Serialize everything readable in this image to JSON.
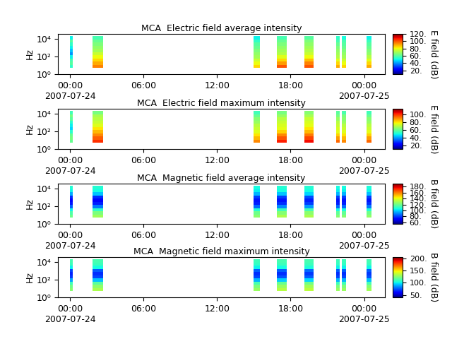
{
  "chart_data": [
    {
      "type": "heatmap",
      "title": "MCA  Electric field average intensity",
      "y_label": "Hz",
      "colorbar_label": "E field (dB)",
      "log": "y",
      "xlim": [
        -1.0,
        25.7
      ],
      "xticks": [
        {
          "value": 0,
          "label": "00:00\n2007-07-24"
        },
        {
          "value": 6,
          "label": "06:00"
        },
        {
          "value": 12,
          "label": "12:00"
        },
        {
          "value": 18,
          "label": "18:00"
        },
        {
          "value": 24,
          "label": "00:00\n2007-07-25"
        }
      ],
      "ylim": [
        1,
        36000
      ],
      "yticks": [
        {
          "value": 1,
          "label": "10⁰"
        },
        {
          "value": 100,
          "label": "10²"
        },
        {
          "value": 10000,
          "label": "10⁴"
        }
      ],
      "colorbar_lim": [
        10,
        120
      ],
      "colorbar_ticks": [
        {
          "value": 20,
          "label": "20."
        },
        {
          "value": 40,
          "label": "40."
        },
        {
          "value": 60,
          "label": "60."
        },
        {
          "value": 80,
          "label": "80."
        },
        {
          "value": 100,
          "label": "100."
        },
        {
          "value": 120,
          "label": "120."
        }
      ],
      "frequency_bins": [
        5,
        11.5,
        26,
        60,
        138,
        316,
        724,
        1660,
        3800,
        8700,
        20000
      ],
      "segments": [
        {
          "start": 0.0,
          "end": 0.23,
          "cells": [
            55,
            60,
            58,
            50,
            40,
            45,
            50,
            55,
            60,
            50
          ]
        },
        {
          "start": 1.85,
          "end": 2.7,
          "cells": [
            95,
            90,
            85,
            80,
            75,
            70,
            68,
            65,
            62,
            58
          ]
        },
        {
          "start": 15.0,
          "end": 15.5,
          "cells": [
            85,
            80,
            75,
            70,
            68,
            65,
            62,
            60,
            55,
            50
          ]
        },
        {
          "start": 16.9,
          "end": 17.7,
          "cells": [
            100,
            92,
            85,
            78,
            72,
            70,
            68,
            65,
            62,
            58
          ]
        },
        {
          "start": 19.1,
          "end": 19.9,
          "cells": [
            100,
            95,
            88,
            80,
            75,
            72,
            70,
            68,
            65,
            60
          ]
        },
        {
          "start": 21.7,
          "end": 22.0,
          "cells": [
            90,
            85,
            78,
            72,
            70,
            68,
            65,
            62,
            58,
            55
          ]
        },
        {
          "start": 22.2,
          "end": 22.5,
          "cells": [
            85,
            80,
            75,
            70,
            68,
            65,
            62,
            60,
            58,
            52
          ]
        },
        {
          "start": 24.2,
          "end": 24.6,
          "cells": [
            90,
            85,
            78,
            72,
            68,
            65,
            62,
            60,
            56,
            50
          ]
        }
      ]
    },
    {
      "type": "heatmap",
      "title": "MCA  Electric field maximum intensity",
      "y_label": "Hz",
      "colorbar_label": "E field (dB)",
      "log": "y",
      "xlim": [
        -1.0,
        25.7
      ],
      "xticks": [
        {
          "value": 0,
          "label": "00:00\n2007-07-24"
        },
        {
          "value": 6,
          "label": "06:00"
        },
        {
          "value": 12,
          "label": "12:00"
        },
        {
          "value": 18,
          "label": "18:00"
        },
        {
          "value": 24,
          "label": "00:00\n2007-07-25"
        }
      ],
      "ylim": [
        1,
        36000
      ],
      "yticks": [
        {
          "value": 1,
          "label": "10⁰"
        },
        {
          "value": 100,
          "label": "10²"
        },
        {
          "value": 10000,
          "label": "10⁴"
        }
      ],
      "colorbar_lim": [
        10,
        115
      ],
      "colorbar_ticks": [
        {
          "value": 20,
          "label": "20."
        },
        {
          "value": 40,
          "label": "40."
        },
        {
          "value": 60,
          "label": "60."
        },
        {
          "value": 80,
          "label": "80."
        },
        {
          "value": 100,
          "label": "100."
        }
      ],
      "frequency_bins": [
        5,
        11.5,
        26,
        60,
        138,
        316,
        724,
        1660,
        3800,
        8700,
        20000
      ],
      "segments": [
        {
          "start": 0.0,
          "end": 0.23,
          "cells": [
            60,
            62,
            60,
            52,
            45,
            48,
            52,
            58,
            62,
            55
          ]
        },
        {
          "start": 1.85,
          "end": 2.7,
          "cells": [
            100,
            95,
            90,
            85,
            80,
            75,
            72,
            70,
            68,
            62
          ]
        },
        {
          "start": 15.0,
          "end": 15.5,
          "cells": [
            90,
            85,
            80,
            75,
            72,
            70,
            66,
            64,
            60,
            55
          ]
        },
        {
          "start": 16.9,
          "end": 17.7,
          "cells": [
            102,
            96,
            90,
            82,
            76,
            74,
            72,
            70,
            66,
            62
          ]
        },
        {
          "start": 19.1,
          "end": 19.9,
          "cells": [
            104,
            98,
            92,
            85,
            80,
            76,
            74,
            72,
            68,
            64
          ]
        },
        {
          "start": 21.7,
          "end": 22.0,
          "cells": [
            94,
            88,
            82,
            76,
            74,
            72,
            70,
            66,
            62,
            58
          ]
        },
        {
          "start": 22.2,
          "end": 22.5,
          "cells": [
            90,
            85,
            80,
            75,
            72,
            70,
            66,
            64,
            62,
            56
          ]
        },
        {
          "start": 24.2,
          "end": 24.6,
          "cells": [
            94,
            88,
            82,
            76,
            72,
            70,
            66,
            64,
            60,
            55
          ]
        }
      ]
    },
    {
      "type": "heatmap",
      "title": "MCA  Magnetic field average intensity",
      "y_label": "Hz",
      "colorbar_label": "B field (dB)",
      "log": "y",
      "xlim": [
        -1.0,
        25.7
      ],
      "xticks": [
        {
          "value": 0,
          "label": "00:00\n2007-07-24"
        },
        {
          "value": 6,
          "label": "06:00"
        },
        {
          "value": 12,
          "label": "12:00"
        },
        {
          "value": 18,
          "label": "18:00"
        },
        {
          "value": 24,
          "label": "00:00\n2007-07-25"
        }
      ],
      "ylim": [
        1,
        36000
      ],
      "yticks": [
        {
          "value": 1,
          "label": "10⁰"
        },
        {
          "value": 100,
          "label": "10²"
        },
        {
          "value": 10000,
          "label": "10⁴"
        }
      ],
      "colorbar_lim": [
        55,
        190
      ],
      "colorbar_ticks": [
        {
          "value": 60,
          "label": "60."
        },
        {
          "value": 80,
          "label": "80."
        },
        {
          "value": 100,
          "label": "100."
        },
        {
          "value": 120,
          "label": "120."
        },
        {
          "value": 140,
          "label": "140."
        },
        {
          "value": 160,
          "label": "160."
        },
        {
          "value": 180,
          "label": "180."
        }
      ],
      "frequency_bins": [
        5,
        11.5,
        26,
        60,
        138,
        316,
        724,
        1660,
        3800,
        8700,
        20000
      ],
      "segments": [
        {
          "start": 0.0,
          "end": 0.23,
          "cells": [
            120,
            115,
            105,
            85,
            75,
            72,
            78,
            95,
            105,
            108
          ]
        },
        {
          "start": 1.85,
          "end": 2.7,
          "cells": [
            128,
            122,
            110,
            88,
            76,
            72,
            78,
            98,
            106,
            108
          ]
        },
        {
          "start": 15.0,
          "end": 15.5,
          "cells": [
            125,
            120,
            108,
            86,
            76,
            74,
            80,
            96,
            104,
            106
          ]
        },
        {
          "start": 16.9,
          "end": 17.7,
          "cells": [
            130,
            124,
            112,
            90,
            78,
            74,
            80,
            98,
            106,
            108
          ]
        },
        {
          "start": 19.1,
          "end": 19.9,
          "cells": [
            130,
            125,
            114,
            92,
            80,
            76,
            82,
            100,
            106,
            108
          ]
        },
        {
          "start": 21.7,
          "end": 22.0,
          "cells": [
            124,
            118,
            106,
            86,
            76,
            74,
            80,
            96,
            104,
            106
          ]
        },
        {
          "start": 22.2,
          "end": 22.5,
          "cells": [
            124,
            118,
            106,
            86,
            76,
            74,
            80,
            96,
            104,
            106
          ]
        },
        {
          "start": 24.2,
          "end": 24.6,
          "cells": [
            126,
            120,
            108,
            88,
            78,
            75,
            80,
            97,
            105,
            107
          ]
        }
      ]
    },
    {
      "type": "heatmap",
      "title": "MCA  Magnetic field maximum intensity",
      "y_label": "Hz",
      "colorbar_label": "B field (dB)",
      "log": "y",
      "xlim": [
        -1.0,
        25.7
      ],
      "xticks": [
        {
          "value": 0,
          "label": "00:00\n2007-07-24"
        },
        {
          "value": 6,
          "label": "06:00"
        },
        {
          "value": 12,
          "label": "12:00"
        },
        {
          "value": 18,
          "label": "18:00"
        },
        {
          "value": 24,
          "label": "00:00\n2007-07-25"
        }
      ],
      "ylim": [
        1,
        36000
      ],
      "yticks": [
        {
          "value": 1,
          "label": "10⁰"
        },
        {
          "value": 100,
          "label": "10²"
        },
        {
          "value": 10000,
          "label": "10⁴"
        }
      ],
      "colorbar_lim": [
        40,
        205
      ],
      "colorbar_ticks": [
        {
          "value": 50,
          "label": "50."
        },
        {
          "value": 100,
          "label": "100."
        },
        {
          "value": 150,
          "label": "150."
        },
        {
          "value": 200,
          "label": "200."
        }
      ],
      "frequency_bins": [
        5,
        11.5,
        26,
        60,
        138,
        316,
        724,
        1660,
        3800,
        8700,
        20000
      ],
      "segments": [
        {
          "start": 0.0,
          "end": 0.23,
          "cells": [
            125,
            120,
            110,
            88,
            70,
            66,
            72,
            100,
            110,
            112
          ]
        },
        {
          "start": 1.85,
          "end": 2.7,
          "cells": [
            132,
            126,
            116,
            92,
            72,
            68,
            75,
            102,
            110,
            112
          ]
        },
        {
          "start": 15.0,
          "end": 15.5,
          "cells": [
            128,
            122,
            112,
            90,
            72,
            68,
            76,
            100,
            108,
            110
          ]
        },
        {
          "start": 16.9,
          "end": 17.7,
          "cells": [
            134,
            128,
            118,
            94,
            74,
            68,
            76,
            102,
            110,
            112
          ]
        },
        {
          "start": 19.1,
          "end": 19.9,
          "cells": [
            135,
            130,
            120,
            96,
            76,
            70,
            78,
            104,
            110,
            112
          ]
        },
        {
          "start": 21.7,
          "end": 22.0,
          "cells": [
            128,
            122,
            110,
            90,
            72,
            68,
            76,
            100,
            108,
            110
          ]
        },
        {
          "start": 22.2,
          "end": 22.5,
          "cells": [
            128,
            122,
            110,
            90,
            72,
            68,
            76,
            100,
            108,
            110
          ]
        },
        {
          "start": 24.2,
          "end": 24.6,
          "cells": [
            130,
            124,
            112,
            92,
            74,
            70,
            76,
            101,
            109,
            111
          ]
        }
      ]
    }
  ]
}
